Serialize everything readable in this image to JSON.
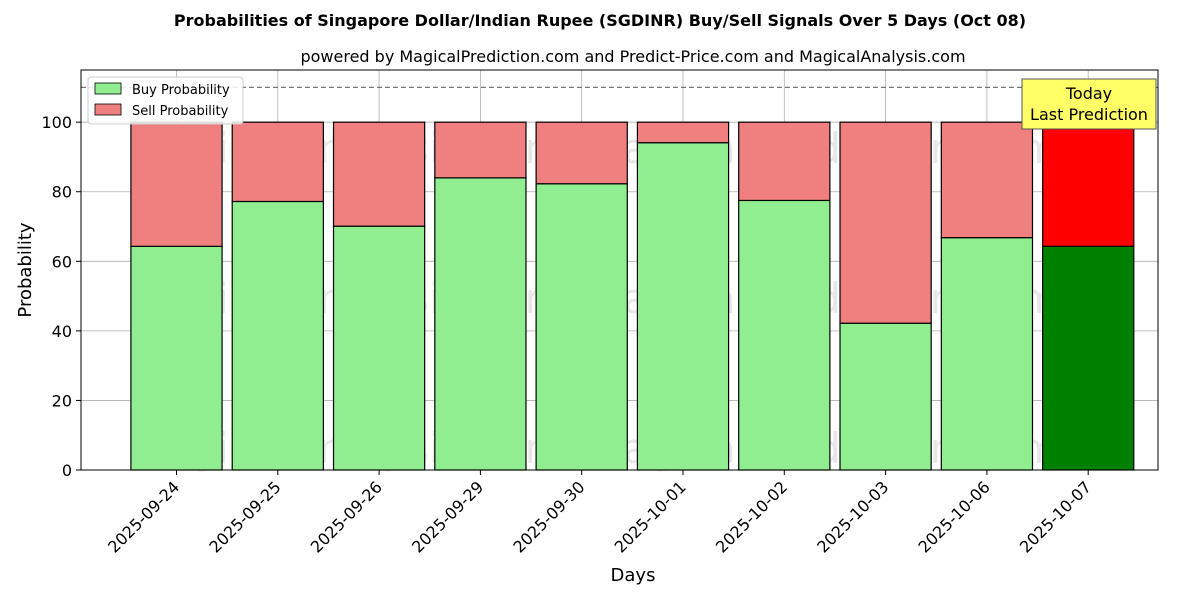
{
  "chart_data": {
    "type": "bar",
    "stacked": true,
    "title": "Probabilities of Singapore Dollar/Indian Rupee (SGDINR) Buy/Sell Signals Over 5 Days (Oct 08)",
    "subtitle": "powered by MagicalPrediction.com and Predict-Price.com and MagicalAnalysis.com",
    "xlabel": "Days",
    "ylabel": "Probability",
    "ylim": [
      0,
      115
    ],
    "yticks": [
      0,
      20,
      40,
      60,
      80,
      100
    ],
    "grid": true,
    "legend_position": "top-left",
    "categories": [
      "2025-09-24",
      "2025-09-25",
      "2025-09-26",
      "2025-09-29",
      "2025-09-30",
      "2025-10-01",
      "2025-10-02",
      "2025-10-03",
      "2025-10-06",
      "2025-10-07"
    ],
    "series": [
      {
        "name": "Buy Probability",
        "values": [
          64.3,
          77.2,
          70.1,
          84.0,
          82.3,
          94.1,
          77.5,
          42.2,
          66.8,
          64.3
        ]
      },
      {
        "name": "Sell Probability",
        "values": [
          35.7,
          22.8,
          29.9,
          16.0,
          17.7,
          5.9,
          22.5,
          57.8,
          33.2,
          35.7
        ]
      }
    ],
    "reference_line": {
      "y": 110,
      "style": "dashed"
    },
    "highlight_index": 9,
    "annotation": {
      "line1": "Today",
      "line2": "Last Prediction",
      "color": "#ffff66"
    },
    "colors": {
      "buy": "#90ee90",
      "sell": "#f08080",
      "buy_highlight": "#008000",
      "sell_highlight": "#ff0000"
    },
    "watermarks": [
      "MagicalAnalysis.com",
      "MagicalPrediction.com"
    ]
  }
}
